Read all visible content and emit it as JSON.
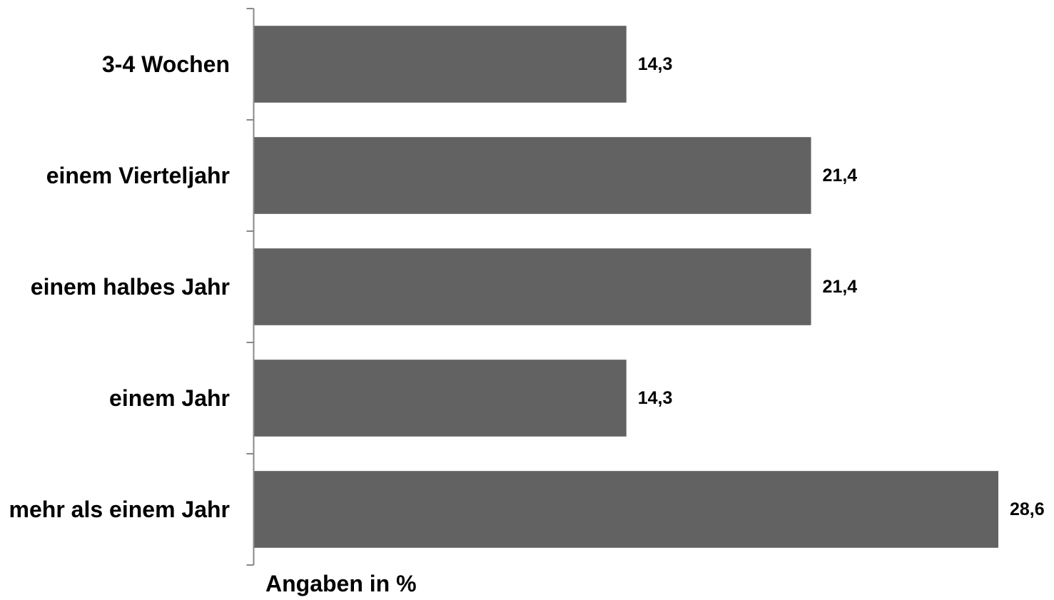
{
  "chart_data": {
    "type": "bar",
    "orientation": "horizontal",
    "categories": [
      "3-4 Wochen",
      "einem Vierteljahr",
      "einem halbes Jahr",
      "einem Jahr",
      "mehr als einem Jahr"
    ],
    "values": [
      14.3,
      21.4,
      21.4,
      14.3,
      28.6
    ],
    "value_labels": [
      "14,3",
      "21,4",
      "21,4",
      "14,3",
      "28,6"
    ],
    "xlabel": "Angaben in %",
    "ylabel": "",
    "title": "",
    "xlim": [
      0,
      28.6
    ],
    "grid": false,
    "legend": "none",
    "bar_color": "#626262"
  }
}
